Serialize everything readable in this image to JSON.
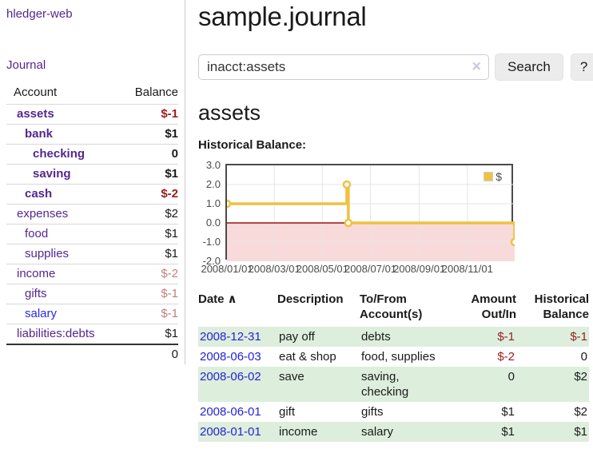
{
  "sidebar": {
    "brand": "hledger-web",
    "journal_link": "Journal",
    "accounts_table": {
      "headers": {
        "account": "Account",
        "balance": "Balance"
      },
      "rows": [
        {
          "account": "assets",
          "level": 1,
          "bold": true,
          "balance": "$-1",
          "balance_style": "neg-strong"
        },
        {
          "account": "bank",
          "level": 2,
          "bold": true,
          "balance": "$1",
          "balance_style": ""
        },
        {
          "account": "checking",
          "level": 3,
          "bold": true,
          "balance": "0",
          "balance_style": ""
        },
        {
          "account": "saving",
          "level": 3,
          "bold": true,
          "balance": "$1",
          "balance_style": ""
        },
        {
          "account": "cash",
          "level": 2,
          "bold": true,
          "balance": "$-2",
          "balance_style": "neg-strong"
        },
        {
          "account": "expenses",
          "level": 1,
          "bold": false,
          "balance": "$2",
          "balance_style": ""
        },
        {
          "account": "food",
          "level": 2,
          "bold": false,
          "balance": "$1",
          "balance_style": ""
        },
        {
          "account": "supplies",
          "level": 2,
          "bold": false,
          "balance": "$1",
          "balance_style": ""
        },
        {
          "account": "income",
          "level": 1,
          "bold": false,
          "balance": "$-2",
          "balance_style": "neg-soft"
        },
        {
          "account": "gifts",
          "level": 2,
          "bold": false,
          "balance": "$-1",
          "balance_style": "neg-soft"
        },
        {
          "account": "salary",
          "level": 2,
          "bold": false,
          "link_color": "blue",
          "balance": "$-1",
          "balance_style": "neg-soft"
        },
        {
          "account": "liabilities:debts",
          "level": 1,
          "bold": false,
          "balance": "$1",
          "balance_style": ""
        }
      ],
      "total": "0"
    }
  },
  "header": {
    "title": "sample.journal"
  },
  "search": {
    "value": "inacct:assets",
    "clear_icon": "×",
    "button_label": "Search",
    "help_label": "?"
  },
  "account_page": {
    "title": "assets",
    "chart_label": "Historical Balance:"
  },
  "chart_data": {
    "type": "line",
    "title": "Historical Balance:",
    "step": true,
    "series": [
      {
        "name": "$",
        "color": "#edc240",
        "points": [
          [
            "2008-01-01",
            1
          ],
          [
            "2008-06-01",
            2
          ],
          [
            "2008-06-03",
            0
          ],
          [
            "2008-12-31",
            -1
          ]
        ]
      }
    ],
    "xlim": [
      "2008-01-01",
      "2008-12-31"
    ],
    "ylim": [
      -2,
      3
    ],
    "x_tick_labels": [
      "2008/01/01",
      "2008/03/01",
      "2008/05/01",
      "2008/07/01",
      "2008/09/01",
      "2008/11/01"
    ],
    "y_tick_labels": [
      "3.0",
      "2.0",
      "1.0",
      "0.0",
      "-1.0",
      "-2.0"
    ],
    "grid": true,
    "negative_fill": "#f9dada",
    "zero_line_color": "#9d1010",
    "legend": {
      "label": "$",
      "position": "top-right"
    }
  },
  "register_table": {
    "headers": [
      "Date",
      "Description",
      "To/From Account(s)",
      "Amount Out/In",
      "Historical Balance"
    ],
    "sort_icon": "∧",
    "rows": [
      {
        "date": "2008-12-31",
        "description": "pay off",
        "accounts": "debts",
        "amount": "$-1",
        "amount_neg": true,
        "balance": "$-1",
        "balance_neg": true
      },
      {
        "date": "2008-06-03",
        "description": "eat & shop",
        "accounts": "food, supplies",
        "amount": "$-2",
        "amount_neg": true,
        "balance": "0",
        "balance_neg": false
      },
      {
        "date": "2008-06-02",
        "description": "save",
        "accounts": "saving, checking",
        "amount": "0",
        "amount_neg": false,
        "balance": "$2",
        "balance_neg": false
      },
      {
        "date": "2008-06-01",
        "description": "gift",
        "accounts": "gifts",
        "amount": "$1",
        "amount_neg": false,
        "balance": "$2",
        "balance_neg": false
      },
      {
        "date": "2008-01-01",
        "description": "income",
        "accounts": "salary",
        "amount": "$1",
        "amount_neg": false,
        "balance": "$1",
        "balance_neg": false
      }
    ]
  },
  "colors": {
    "link_purple": "#54278f",
    "link_blue": "#2a2ae0",
    "negative_strong": "#9b1c1c",
    "negative_soft": "#c08080",
    "row_highlight_green": "#ddeedd",
    "series_gold": "#edc240",
    "below_zero_pink": "#f9dada"
  }
}
